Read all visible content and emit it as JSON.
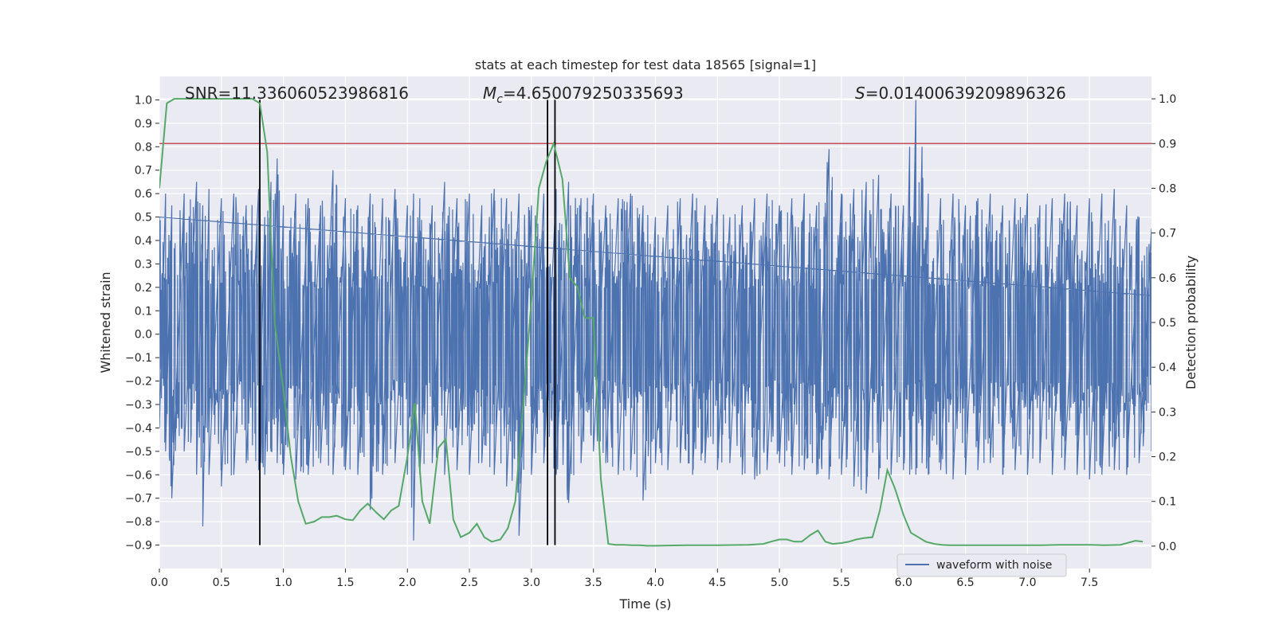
{
  "chart_data": {
    "type": "line",
    "title": "stats at each timestep for test data 18565 [signal=1]",
    "xlabel": "Time (s)",
    "ylabel": "Whitened strain",
    "y2label": "Detection probability",
    "xlim": [
      0.0,
      8.0
    ],
    "ylim": [
      -1.0,
      1.1
    ],
    "y2lim": [
      -0.05,
      1.05
    ],
    "xticks": [
      0.0,
      0.5,
      1.0,
      1.5,
      2.0,
      2.5,
      3.0,
      3.5,
      4.0,
      4.5,
      5.0,
      5.5,
      6.0,
      6.5,
      7.0,
      7.5
    ],
    "xtick_labels": [
      "0.0",
      "0.5",
      "1.0",
      "1.5",
      "2.0",
      "2.5",
      "3.0",
      "3.5",
      "4.0",
      "4.5",
      "5.0",
      "5.5",
      "6.0",
      "6.5",
      "7.0",
      "7.5"
    ],
    "yticks": [
      1.0,
      0.9,
      0.8,
      0.7,
      0.6,
      0.5,
      0.4,
      0.3,
      0.2,
      0.1,
      0.0,
      -0.1,
      -0.2,
      -0.3,
      -0.4,
      -0.5,
      -0.6,
      -0.7,
      -0.8,
      -0.9
    ],
    "ytick_labels": [
      "1.0",
      "0.9",
      "0.8",
      "0.7",
      "0.6",
      "0.5",
      "0.4",
      "0.3",
      "0.2",
      "0.1",
      "0.0",
      "−0.1",
      "−0.2",
      "−0.3",
      "−0.4",
      "−0.5",
      "−0.6",
      "−0.7",
      "−0.8",
      "−0.9"
    ],
    "y2ticks": [
      1.0,
      0.9,
      0.8,
      0.7,
      0.6,
      0.5,
      0.4,
      0.3,
      0.2,
      0.1,
      0.0
    ],
    "y2tick_labels": [
      "1.0",
      "0.9",
      "0.8",
      "0.7",
      "0.6",
      "0.5",
      "0.4",
      "0.3",
      "0.2",
      "0.1",
      "0.0"
    ],
    "grid": true,
    "legend_position": "bottom-right",
    "annotations": {
      "snr": "SNR=11.336060523986816",
      "mc_symbol": "M",
      "mc_sub": "c",
      "mc_value": "=4.650079250335693",
      "s_symbol": "S",
      "s_value": "=0.01400639209896326"
    },
    "threshold": {
      "y2": 0.9,
      "color": "#c44e52"
    },
    "vlines": [
      {
        "x": 0.81,
        "color": "#000000"
      },
      {
        "x": 3.13,
        "color": "#000000"
      },
      {
        "x": 3.19,
        "color": "#000000"
      }
    ],
    "series": [
      {
        "name": "waveform with noise",
        "axis": "left",
        "color": "#4c72b0",
        "envelope_x": [
          0.0,
          0.05,
          0.1,
          0.2,
          0.3,
          0.35,
          0.4,
          0.5,
          0.6,
          0.7,
          0.8,
          0.85,
          0.9,
          0.95,
          1.0,
          1.1,
          1.2,
          1.3,
          1.4,
          1.5,
          1.6,
          1.7,
          1.8,
          1.9,
          2.0,
          2.05,
          2.1,
          2.2,
          2.3,
          2.4,
          2.5,
          2.6,
          2.7,
          2.8,
          2.9,
          3.0,
          3.1,
          3.2,
          3.3,
          3.4,
          3.5,
          3.6,
          3.7,
          3.8,
          3.9,
          4.0,
          4.1,
          4.2,
          4.3,
          4.4,
          4.5,
          4.6,
          4.7,
          4.8,
          4.9,
          5.0,
          5.1,
          5.2,
          5.3,
          5.4,
          5.5,
          5.6,
          5.7,
          5.8,
          5.9,
          6.0,
          6.05,
          6.1,
          6.15,
          6.2,
          6.3,
          6.4,
          6.5,
          6.6,
          6.7,
          6.8,
          6.9,
          7.0,
          7.1,
          7.2,
          7.3,
          7.4,
          7.5,
          7.6,
          7.7,
          7.8,
          7.9,
          8.0
        ],
        "envelope_max": [
          0.5,
          0.6,
          0.55,
          0.6,
          0.65,
          0.55,
          0.62,
          0.58,
          0.6,
          0.55,
          0.62,
          0.5,
          0.65,
          0.75,
          0.55,
          0.6,
          0.58,
          0.55,
          0.7,
          0.58,
          0.55,
          0.6,
          0.58,
          0.62,
          0.55,
          0.6,
          0.58,
          0.55,
          0.65,
          0.58,
          0.6,
          0.55,
          0.62,
          0.58,
          0.6,
          0.55,
          0.6,
          0.62,
          0.65,
          0.58,
          0.6,
          0.55,
          0.58,
          0.6,
          0.55,
          0.5,
          0.55,
          0.58,
          0.6,
          0.55,
          0.58,
          0.5,
          0.55,
          0.58,
          0.6,
          0.55,
          0.58,
          0.6,
          0.55,
          0.79,
          0.6,
          0.62,
          0.65,
          0.68,
          0.6,
          0.55,
          0.8,
          1.0,
          0.8,
          0.6,
          0.58,
          0.6,
          0.55,
          0.58,
          0.6,
          0.55,
          0.58,
          0.6,
          0.55,
          0.58,
          0.6,
          0.55,
          0.58,
          0.6,
          0.62,
          0.55,
          0.5,
          0.45
        ],
        "envelope_min": [
          -0.4,
          -0.5,
          -0.7,
          -0.5,
          -0.6,
          -0.82,
          -0.6,
          -0.65,
          -0.6,
          -0.55,
          -0.58,
          -0.6,
          -0.5,
          -0.55,
          -0.6,
          -0.62,
          -0.6,
          -0.55,
          -0.6,
          -0.58,
          -0.6,
          -0.75,
          -0.6,
          -0.55,
          -0.6,
          -0.88,
          -0.6,
          -0.55,
          -0.6,
          -0.58,
          -0.6,
          -0.55,
          -0.6,
          -0.65,
          -0.86,
          -0.6,
          -0.55,
          -0.6,
          -0.72,
          -0.55,
          -0.5,
          -0.55,
          -0.6,
          -0.58,
          -0.71,
          -0.55,
          -0.58,
          -0.55,
          -0.6,
          -0.55,
          -0.58,
          -0.55,
          -0.6,
          -0.62,
          -0.58,
          -0.55,
          -0.6,
          -0.58,
          -0.6,
          -0.62,
          -0.6,
          -0.65,
          -0.68,
          -0.62,
          -0.6,
          -0.58,
          -0.6,
          -0.6,
          -0.55,
          -0.6,
          -0.58,
          -0.62,
          -0.6,
          -0.58,
          -0.55,
          -0.6,
          -0.58,
          -0.6,
          -0.55,
          -0.6,
          -0.58,
          -0.6,
          -0.62,
          -0.6,
          -0.58,
          -0.6,
          -0.55,
          -0.5
        ]
      },
      {
        "name": "",
        "axis": "right",
        "color": "#55a868",
        "x": [
          0.0,
          0.06,
          0.12,
          0.18,
          0.25,
          0.31,
          0.37,
          0.43,
          0.5,
          0.56,
          0.62,
          0.68,
          0.75,
          0.81,
          0.87,
          0.93,
          1.0,
          1.06,
          1.12,
          1.18,
          1.25,
          1.31,
          1.37,
          1.43,
          1.5,
          1.56,
          1.62,
          1.68,
          1.75,
          1.81,
          1.87,
          1.93,
          2.0,
          2.06,
          2.12,
          2.18,
          2.25,
          2.31,
          2.37,
          2.43,
          2.5,
          2.56,
          2.62,
          2.68,
          2.75,
          2.81,
          2.87,
          2.93,
          3.0,
          3.06,
          3.12,
          3.18,
          3.25,
          3.31,
          3.37,
          3.43,
          3.5,
          3.56,
          3.62,
          3.68,
          3.75,
          3.81,
          3.87,
          3.93,
          4.0,
          4.25,
          4.5,
          4.75,
          4.87,
          4.93,
          5.0,
          5.06,
          5.12,
          5.18,
          5.25,
          5.31,
          5.37,
          5.43,
          5.5,
          5.56,
          5.62,
          5.68,
          5.75,
          5.81,
          5.87,
          5.93,
          6.0,
          6.06,
          6.12,
          6.18,
          6.25,
          6.31,
          6.37,
          6.43,
          6.5,
          6.75,
          7.0,
          7.12,
          7.25,
          7.5,
          7.62,
          7.75,
          7.87,
          7.93
        ],
        "values": [
          0.8,
          0.99,
          1.0,
          1.0,
          1.0,
          1.0,
          1.0,
          1.0,
          1.0,
          1.0,
          1.0,
          1.0,
          1.0,
          0.99,
          0.88,
          0.5,
          0.35,
          0.2,
          0.1,
          0.05,
          0.055,
          0.065,
          0.065,
          0.068,
          0.06,
          0.058,
          0.08,
          0.095,
          0.075,
          0.06,
          0.08,
          0.09,
          0.2,
          0.32,
          0.1,
          0.05,
          0.22,
          0.24,
          0.06,
          0.02,
          0.03,
          0.05,
          0.02,
          0.01,
          0.015,
          0.04,
          0.1,
          0.3,
          0.55,
          0.8,
          0.86,
          0.9,
          0.82,
          0.6,
          0.58,
          0.51,
          0.51,
          0.15,
          0.005,
          0.003,
          0.003,
          0.002,
          0.002,
          0.001,
          0.001,
          0.002,
          0.002,
          0.003,
          0.005,
          0.01,
          0.015,
          0.015,
          0.01,
          0.01,
          0.025,
          0.035,
          0.01,
          0.005,
          0.007,
          0.01,
          0.015,
          0.018,
          0.02,
          0.08,
          0.17,
          0.13,
          0.07,
          0.03,
          0.02,
          0.01,
          0.005,
          0.003,
          0.002,
          0.002,
          0.002,
          0.002,
          0.002,
          0.002,
          0.003,
          0.003,
          0.002,
          0.003,
          0.012,
          0.01
        ]
      }
    ]
  }
}
